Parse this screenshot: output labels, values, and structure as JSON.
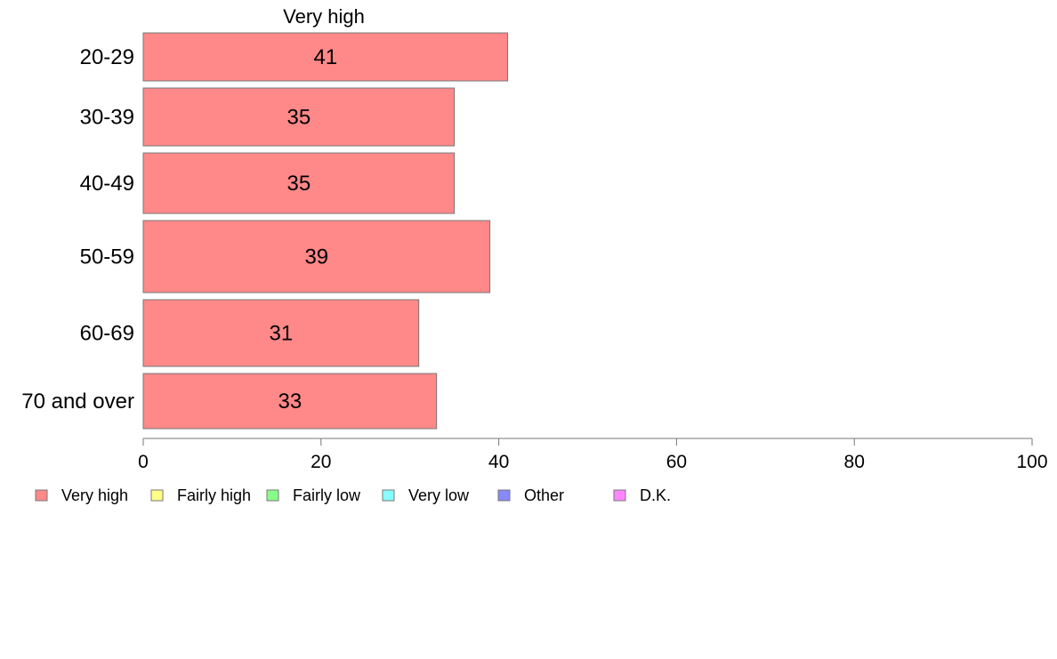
{
  "chart_data": {
    "type": "bar",
    "orientation": "horizontal",
    "title": "Very high",
    "categories": [
      "20-29",
      "30-39",
      "40-49",
      "50-59",
      "60-69",
      "70 and over"
    ],
    "series": [
      {
        "name": "Very high",
        "values": [
          41,
          35,
          35,
          39,
          31,
          33
        ],
        "labels": [
          "41",
          "35",
          "35",
          "39",
          "31",
          "33"
        ],
        "color": "#ff8888"
      }
    ],
    "xlim": [
      0,
      100
    ],
    "xticks": [
      0,
      20,
      40,
      60,
      80,
      100
    ],
    "xtick_labels": [
      "0",
      "20",
      "40",
      "60",
      "80",
      "100"
    ],
    "grid": false,
    "legend_position": "bottom-left",
    "legend": [
      {
        "label": "Very high",
        "color": "#ff8888"
      },
      {
        "label": "Fairly high",
        "color": "#ffff88"
      },
      {
        "label": "Fairly low",
        "color": "#88ff88"
      },
      {
        "label": "Very low",
        "color": "#88ffff"
      },
      {
        "label": "Other",
        "color": "#8888ff"
      },
      {
        "label": "D.K.",
        "color": "#ff88ff"
      }
    ]
  }
}
